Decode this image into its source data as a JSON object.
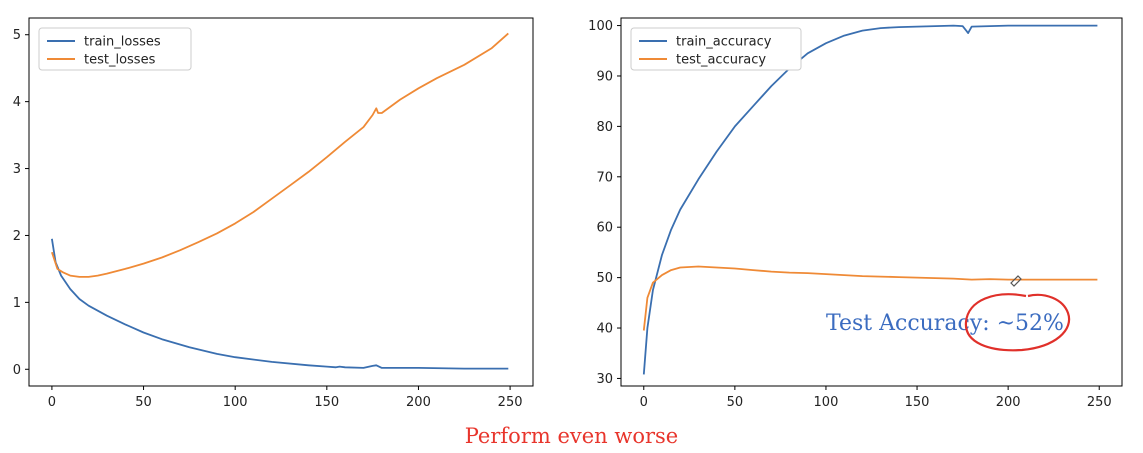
{
  "caption": "Perform even worse",
  "chart_data": [
    {
      "type": "line",
      "title": "",
      "xlabel": "",
      "ylabel": "",
      "xlim": [
        -12.5,
        262.5
      ],
      "ylim": [
        -0.25,
        5.25
      ],
      "xticks": [
        0,
        50,
        100,
        150,
        200,
        250
      ],
      "yticks": [
        0,
        1,
        2,
        3,
        4,
        5
      ],
      "legend": "top-left",
      "grid": false,
      "series": [
        {
          "name": "train_losses",
          "color": "#3a6fb0",
          "x": [
            0,
            2,
            5,
            10,
            15,
            20,
            30,
            40,
            50,
            60,
            75,
            90,
            100,
            120,
            140,
            150,
            155,
            157,
            160,
            170,
            175,
            177,
            180,
            200,
            225,
            249
          ],
          "y": [
            1.95,
            1.6,
            1.4,
            1.2,
            1.05,
            0.95,
            0.8,
            0.67,
            0.55,
            0.45,
            0.33,
            0.23,
            0.18,
            0.11,
            0.06,
            0.04,
            0.03,
            0.04,
            0.03,
            0.02,
            0.05,
            0.06,
            0.02,
            0.02,
            0.01,
            0.01
          ]
        },
        {
          "name": "test_losses",
          "color": "#ef8a36",
          "x": [
            0,
            3,
            6,
            10,
            15,
            20,
            25,
            30,
            40,
            50,
            60,
            70,
            80,
            90,
            100,
            110,
            120,
            130,
            140,
            150,
            160,
            170,
            175,
            177,
            178,
            180,
            190,
            200,
            210,
            225,
            240,
            249
          ],
          "y": [
            1.75,
            1.5,
            1.45,
            1.4,
            1.38,
            1.38,
            1.4,
            1.43,
            1.5,
            1.58,
            1.67,
            1.78,
            1.9,
            2.03,
            2.18,
            2.35,
            2.55,
            2.75,
            2.95,
            3.17,
            3.4,
            3.62,
            3.8,
            3.9,
            3.83,
            3.83,
            4.03,
            4.2,
            4.35,
            4.55,
            4.8,
            5.02
          ]
        }
      ]
    },
    {
      "type": "line",
      "title": "",
      "xlabel": "",
      "ylabel": "",
      "xlim": [
        -12.5,
        262.5
      ],
      "ylim": [
        28.5,
        101.5
      ],
      "xticks": [
        0,
        50,
        100,
        150,
        200,
        250
      ],
      "yticks": [
        30,
        40,
        50,
        60,
        70,
        80,
        90,
        100
      ],
      "legend": "top-left",
      "grid": false,
      "series": [
        {
          "name": "train_accuracy",
          "color": "#3a6fb0",
          "x": [
            0,
            2,
            5,
            10,
            15,
            20,
            30,
            40,
            50,
            60,
            70,
            80,
            90,
            100,
            110,
            120,
            130,
            140,
            150,
            160,
            170,
            175,
            177,
            178,
            180,
            200,
            225,
            249
          ],
          "y": [
            30.8,
            40.0,
            47.5,
            54.5,
            59.5,
            63.5,
            69.5,
            75.0,
            80.0,
            84.0,
            88.0,
            91.5,
            94.5,
            96.5,
            98.0,
            99.0,
            99.5,
            99.7,
            99.8,
            99.9,
            100.0,
            99.9,
            99.0,
            98.5,
            99.8,
            100.0,
            100.0,
            100.0
          ]
        },
        {
          "name": "test_accuracy",
          "color": "#ef8a36",
          "x": [
            0,
            2,
            5,
            10,
            15,
            20,
            30,
            40,
            50,
            60,
            70,
            80,
            90,
            100,
            110,
            120,
            130,
            140,
            150,
            160,
            170,
            175,
            180,
            190,
            200,
            225,
            249
          ],
          "y": [
            39.5,
            46.0,
            49.0,
            50.5,
            51.5,
            52.0,
            52.2,
            52.0,
            51.8,
            51.5,
            51.2,
            51.0,
            50.9,
            50.7,
            50.5,
            50.3,
            50.2,
            50.1,
            50.0,
            49.9,
            49.8,
            49.7,
            49.6,
            49.7,
            49.6,
            49.6,
            49.6
          ]
        }
      ]
    }
  ],
  "annotation": {
    "text": "Test Accuracy: ~52%",
    "color": "#3b6cc0",
    "circle_color": "#e0302a"
  }
}
